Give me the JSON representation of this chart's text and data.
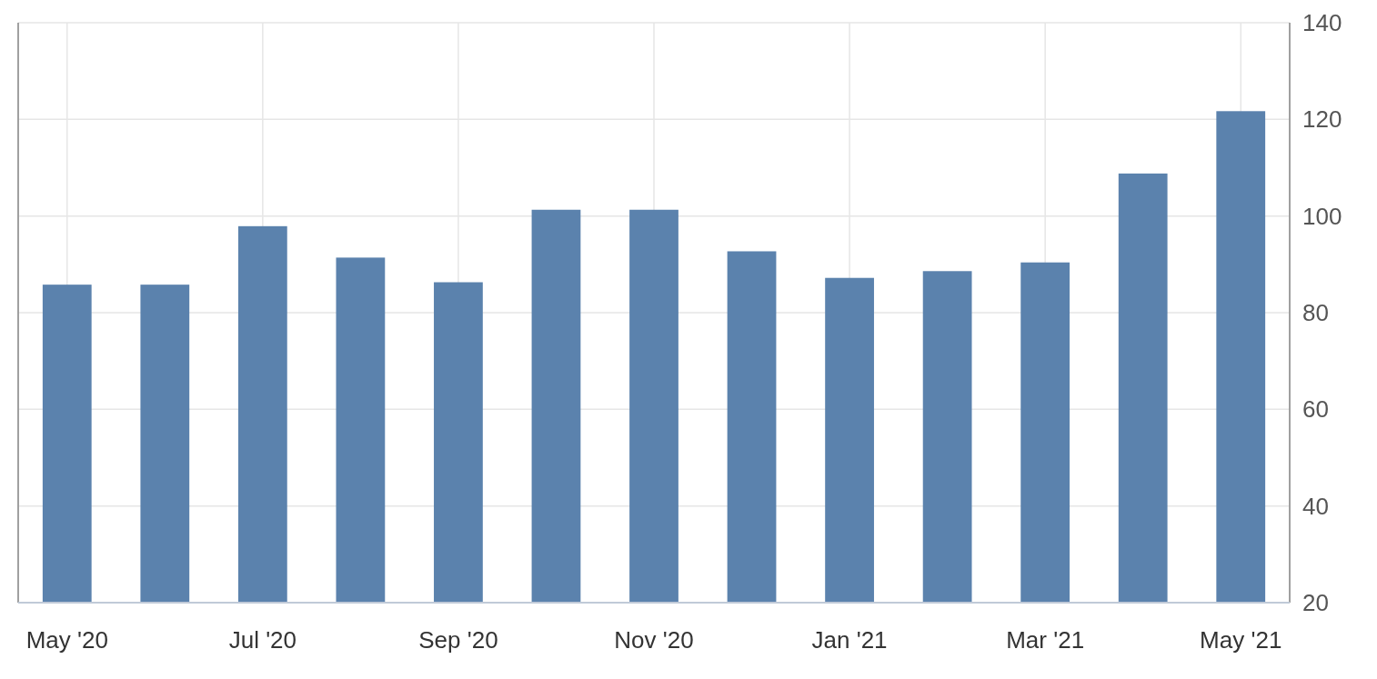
{
  "chart_data": {
    "type": "bar",
    "categories": [
      "May '20",
      null,
      "Jul '20",
      null,
      "Sep '20",
      null,
      "Nov '20",
      null,
      "Jan '21",
      null,
      "Mar '21",
      null,
      "May '21"
    ],
    "values": [
      85.8,
      85.8,
      97.9,
      91.4,
      86.3,
      101.3,
      101.3,
      92.7,
      87.2,
      88.6,
      90.4,
      108.8,
      121.7
    ],
    "color": "#5b82ad",
    "ylim": [
      20,
      140
    ],
    "yticks": [
      20,
      40,
      60,
      80,
      100,
      120,
      140
    ],
    "grid": true
  }
}
